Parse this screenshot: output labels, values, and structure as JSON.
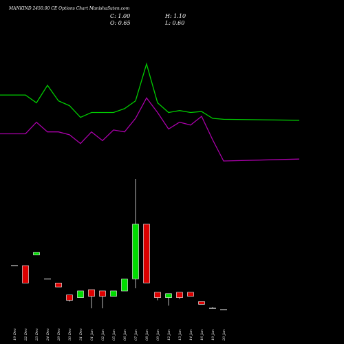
{
  "header": {
    "title": "MANKIND 2450.00  CE Options  Chart ManishaSuten.com",
    "open_label": "O: 0.65",
    "close_label": "C: 1.00",
    "high_label": "H: 1.10",
    "low_label": "L: 0.60"
  },
  "colors": {
    "background": "#000000",
    "up": "#00dd00",
    "down": "#dd0000",
    "green_line": "#00cc00",
    "purple_line": "#aa00aa",
    "text": "#ffffff"
  },
  "chart_data": {
    "type": "candlestick",
    "categories": [
      "19 Dec",
      "22 Dec",
      "23 Dec",
      "24 Dec",
      "29 Dec",
      "30 Dec",
      "31 Dec",
      "01 Jan",
      "02 Jan",
      "05 Jan",
      "06 Jan",
      "07 Jan",
      "08 Jan",
      "09 Jan",
      "12 Jan",
      "13 Jan",
      "14 Jan",
      "16 Jan",
      "19 Jan",
      "20 Jan"
    ],
    "candles": [
      {
        "o": 2.05,
        "h": 2.05,
        "c": 2.05,
        "l": 2.05
      },
      {
        "o": 2.05,
        "h": 2.05,
        "c": 1.4,
        "l": 1.4
      },
      {
        "o": 2.45,
        "h": 2.55,
        "c": 2.55,
        "l": 2.45
      },
      {
        "o": 1.55,
        "h": 1.55,
        "c": 1.55,
        "l": 1.55
      },
      {
        "o": 1.4,
        "h": 1.4,
        "c": 1.25,
        "l": 1.25
      },
      {
        "o": 0.95,
        "h": 0.95,
        "c": 0.75,
        "l": 0.7
      },
      {
        "o": 0.85,
        "h": 1.1,
        "c": 1.1,
        "l": 0.85
      },
      {
        "o": 1.15,
        "h": 1.15,
        "c": 0.9,
        "l": 0.45
      },
      {
        "o": 1.1,
        "h": 1.1,
        "c": 0.9,
        "l": 0.45
      },
      {
        "o": 0.9,
        "h": 1.1,
        "c": 1.1,
        "l": 0.9
      },
      {
        "o": 1.1,
        "h": 1.55,
        "c": 1.55,
        "l": 1.1
      },
      {
        "o": 1.55,
        "h": 5.3,
        "c": 3.6,
        "l": 1.2
      },
      {
        "o": 3.6,
        "h": 3.6,
        "c": 1.4,
        "l": 1.4
      },
      {
        "o": 1.05,
        "h": 1.05,
        "c": 0.85,
        "l": 0.75
      },
      {
        "o": 0.85,
        "h": 1.0,
        "c": 1.0,
        "l": 0.55
      },
      {
        "o": 1.05,
        "h": 1.05,
        "c": 0.85,
        "l": 0.8
      },
      {
        "o": 1.05,
        "h": 1.05,
        "c": 0.9,
        "l": 0.9
      },
      {
        "o": 0.7,
        "h": 0.7,
        "c": 0.6,
        "l": 0.6
      },
      {
        "o": 0.45,
        "h": 0.5,
        "c": 0.45,
        "l": 0.45
      },
      {
        "o": 0.4,
        "h": 0.4,
        "c": 0.4,
        "l": 0.4
      }
    ],
    "lines": [
      {
        "color": "#00cc00",
        "values": [
          0.58,
          0.58,
          0.5,
          0.68,
          0.52,
          0.47,
          0.35,
          0.4,
          0.4,
          0.4,
          0.44,
          0.52,
          0.9,
          0.5,
          0.4,
          0.42,
          0.4,
          0.41,
          0.34,
          0.33
        ]
      },
      {
        "color": "#aa00aa",
        "values": [
          0.18,
          0.18,
          0.3,
          0.2,
          0.2,
          0.17,
          0.08,
          0.2,
          0.11,
          0.22,
          0.2,
          0.34,
          0.55,
          0.4,
          0.23,
          0.3,
          0.27,
          0.36,
          0.12,
          -0.1
        ]
      }
    ]
  }
}
